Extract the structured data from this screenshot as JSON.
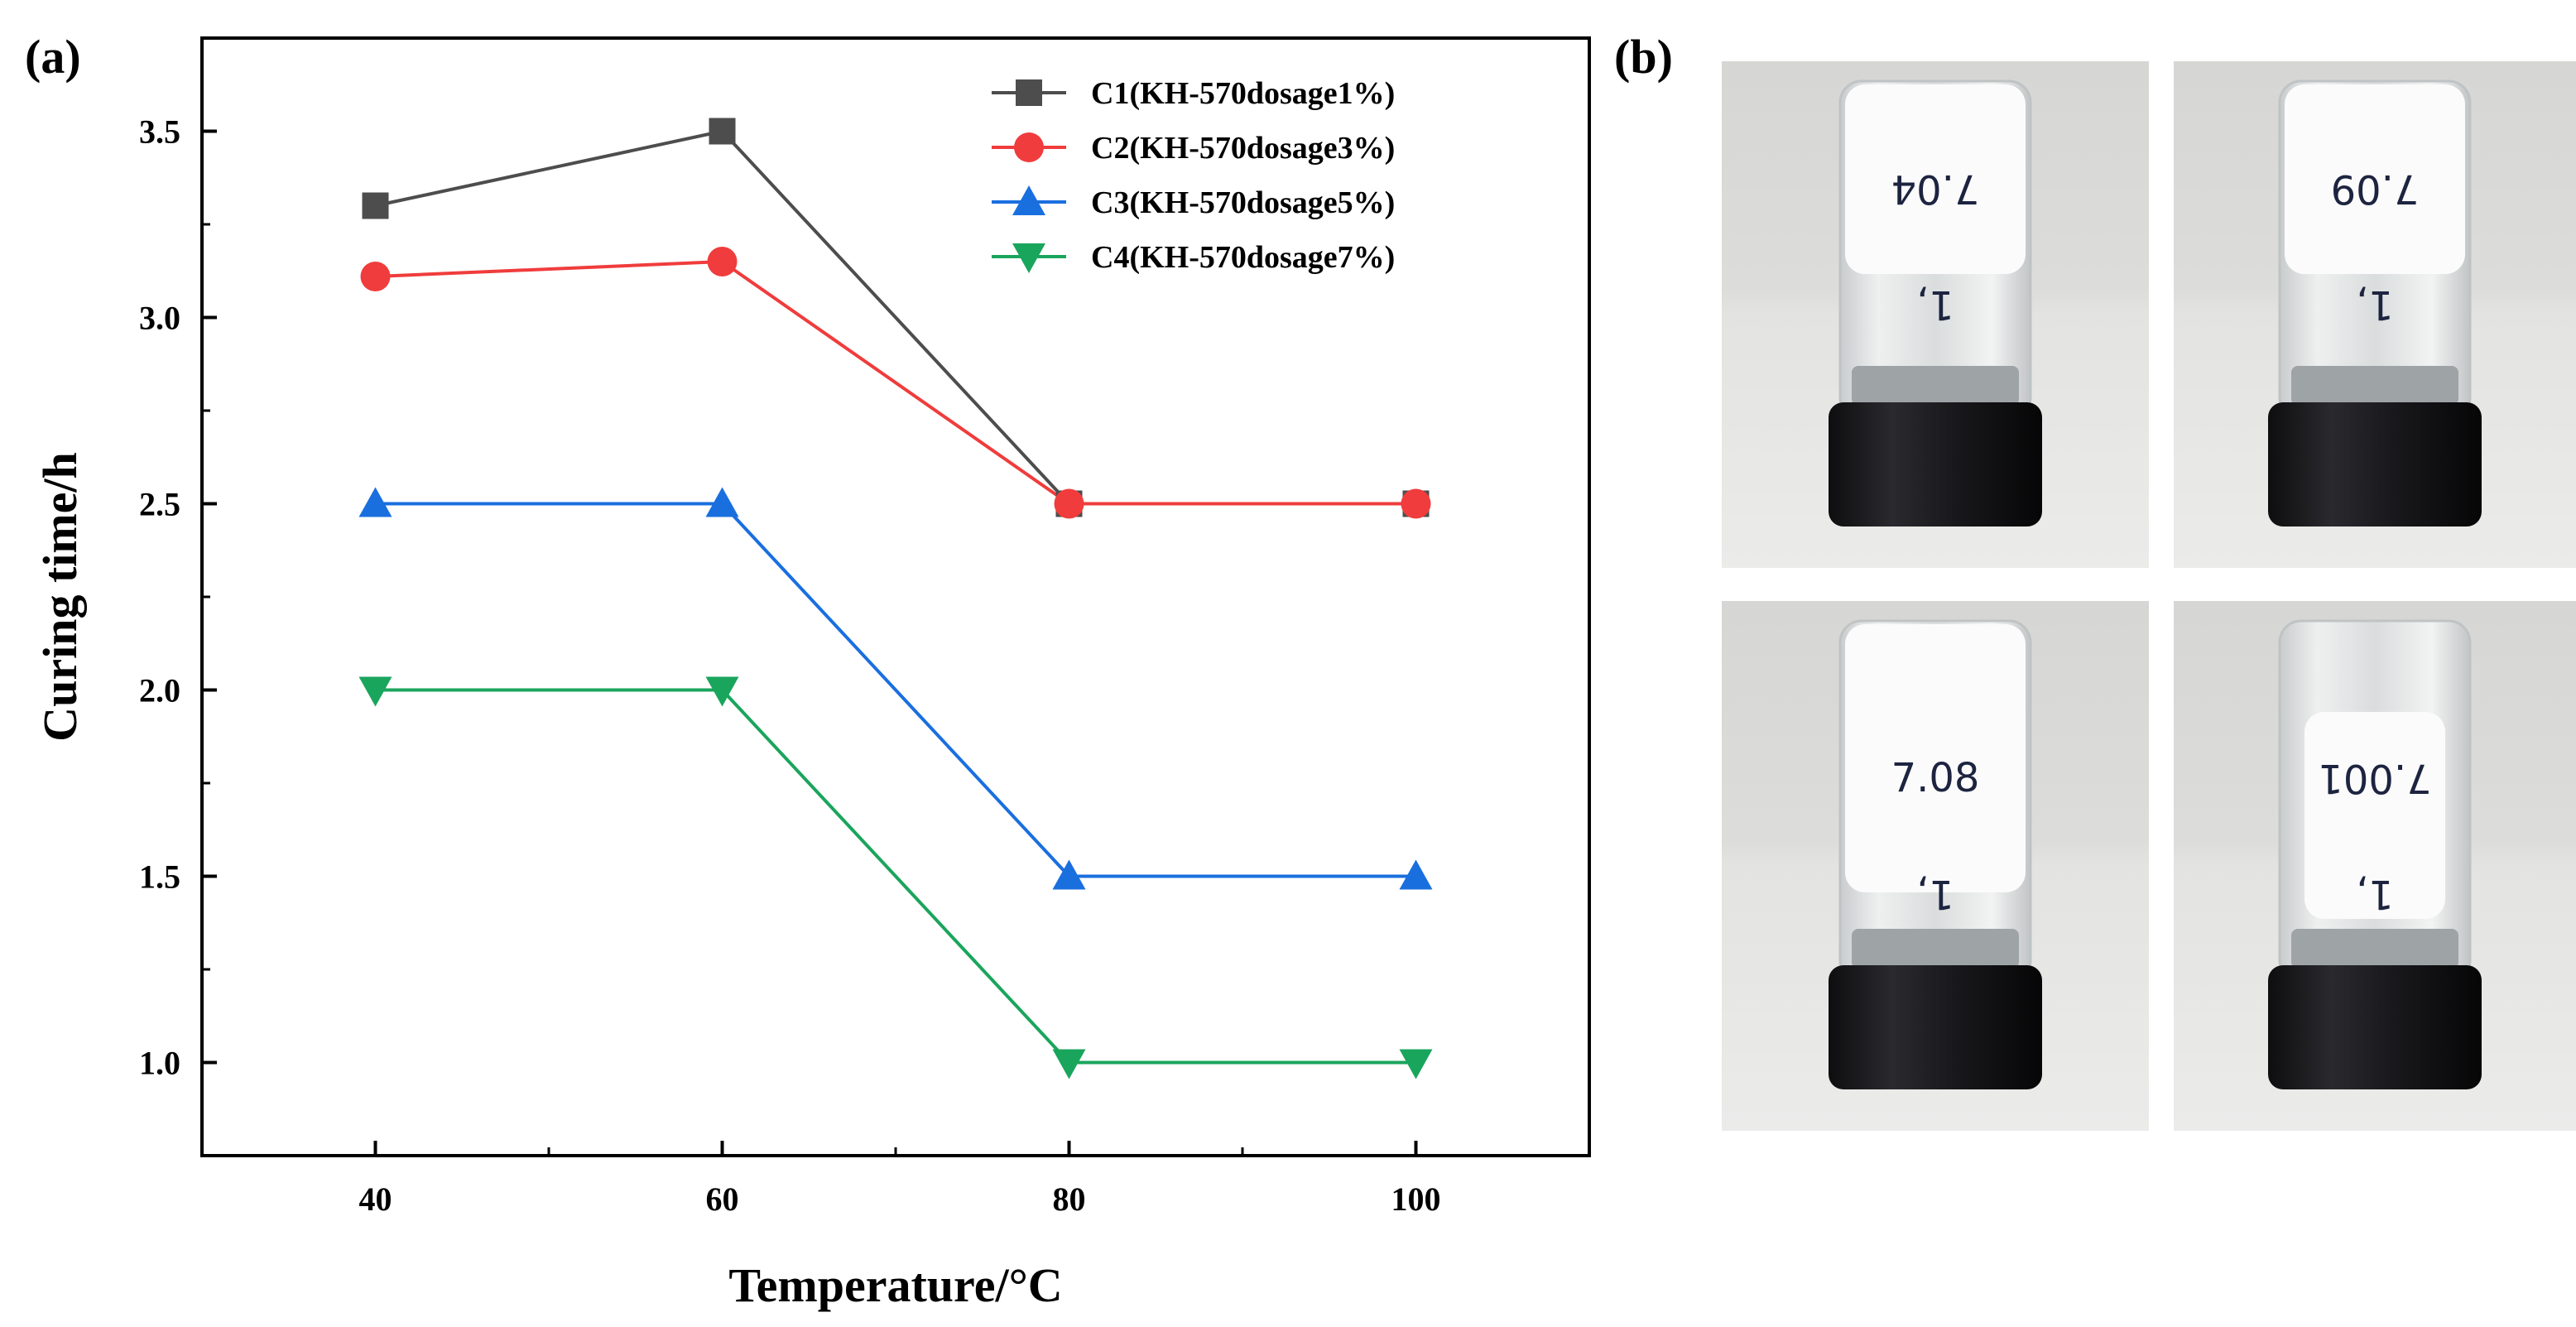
{
  "panels": {
    "a": "(a)",
    "b": "(b)"
  },
  "chart_data": {
    "type": "line",
    "title": "",
    "xlabel": "Temperature/°C",
    "ylabel": "Curing time/h",
    "x": [
      40,
      60,
      80,
      100
    ],
    "xlim": [
      30,
      110
    ],
    "ylim": [
      0.75,
      3.75
    ],
    "xticks": [
      "40",
      "60",
      "80",
      "100"
    ],
    "yticks": [
      "1.0",
      "1.5",
      "2.0",
      "2.5",
      "3.0",
      "3.5"
    ],
    "grid": false,
    "legend_position": "top-right",
    "series": [
      {
        "name": "C1(KH-570dosage1%)",
        "color": "#4d4d4d",
        "marker": "square",
        "values": [
          3.3,
          3.5,
          2.5,
          2.5
        ]
      },
      {
        "name": "C2(KH-570dosage3%)",
        "color": "#f03c3c",
        "marker": "circle",
        "values": [
          3.11,
          3.15,
          2.5,
          2.5
        ]
      },
      {
        "name": "C3(KH-570dosage5%)",
        "color": "#1a6fdf",
        "marker": "triangle-up",
        "values": [
          2.5,
          2.5,
          1.5,
          1.5
        ]
      },
      {
        "name": "C4(KH-570dosage7%)",
        "color": "#1aa55c",
        "marker": "triangle-down",
        "values": [
          2.0,
          2.0,
          1.0,
          1.0
        ]
      }
    ]
  },
  "photos": [
    {
      "label": "7.04",
      "mark": "1,",
      "position": "top-left"
    },
    {
      "label": "7.09",
      "mark": "1,",
      "position": "top-right"
    },
    {
      "label": "7.08",
      "mark": "1,",
      "position": "bottom-left"
    },
    {
      "label": "7.001",
      "mark": "1,",
      "position": "bottom-right"
    }
  ]
}
